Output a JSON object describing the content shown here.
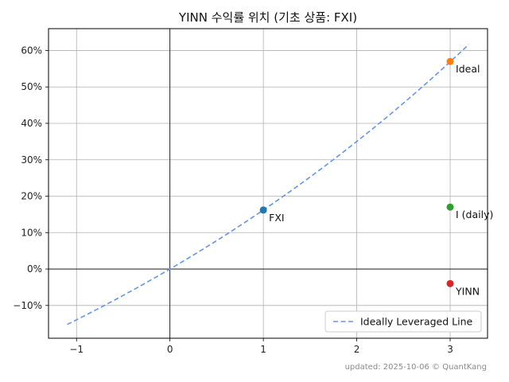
{
  "chart_data": {
    "type": "scatter",
    "title": "YINN 수익률 위치 (기초 상품: FXI)",
    "xlabel": "",
    "ylabel": "",
    "xlim": [
      -1.3,
      3.4
    ],
    "ylim": [
      -19,
      66
    ],
    "x_ticks": [
      -1,
      0,
      1,
      2,
      3
    ],
    "x_tick_labels": [
      "−1",
      "0",
      "1",
      "2",
      "3"
    ],
    "y_ticks": [
      -10,
      0,
      10,
      20,
      30,
      40,
      50,
      60
    ],
    "y_tick_labels": [
      "−10%",
      "0%",
      "10%",
      "20%",
      "30%",
      "40%",
      "50%",
      "60%"
    ],
    "grid": true,
    "zero_lines": true,
    "legend_position": "lower-right",
    "points": [
      {
        "label": "FXI",
        "x": 1,
        "y": 16.2,
        "color": "#1f77b4"
      },
      {
        "label": "Ideal",
        "x": 3,
        "y": 57.0,
        "color": "#ff7f0e"
      },
      {
        "label": "I (daily)",
        "x": 3,
        "y": 17.0,
        "color": "#2ca02c"
      },
      {
        "label": "YINN",
        "x": 3,
        "y": -4.0,
        "color": "#d62728"
      }
    ],
    "series": [
      {
        "name": "Ideally Leveraged Line",
        "style": "dashed",
        "color": "#6495ED",
        "x_range": [
          -1.1,
          3.2
        ]
      }
    ],
    "footer": "updated: 2025-10-06 © QuantKang"
  }
}
